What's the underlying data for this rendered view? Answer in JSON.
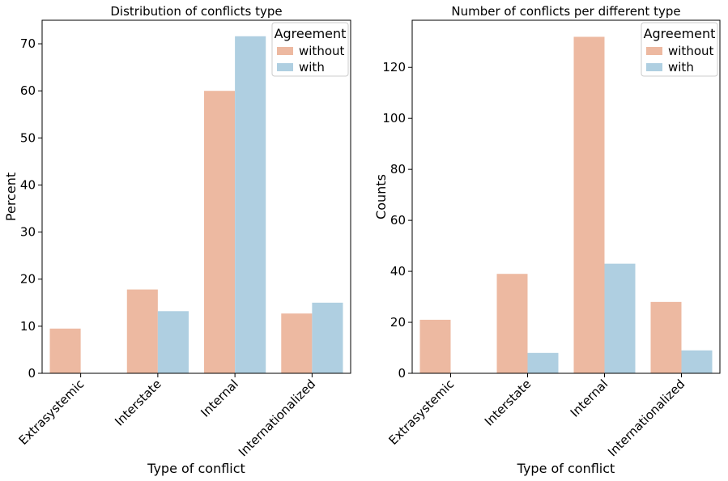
{
  "chart_data": [
    {
      "type": "bar",
      "title": "Distribution of conflicts type",
      "xlabel": "Type of conflict",
      "ylabel": "Percent",
      "categories": [
        "Extrasystemic",
        "Interstate",
        "Internal",
        "Internationalized"
      ],
      "ylim": [
        0,
        75
      ],
      "yticks": [
        0,
        10,
        20,
        30,
        40,
        50,
        60,
        70
      ],
      "legend": {
        "title": "Agreement",
        "placement": "top-right"
      },
      "grid": false,
      "series": [
        {
          "name": "without",
          "color": "#edb9a1",
          "values": [
            9.5,
            17.8,
            60.0,
            12.7
          ]
        },
        {
          "name": "with",
          "color": "#afcfe1",
          "values": [
            0,
            13.2,
            71.6,
            15.0
          ]
        }
      ]
    },
    {
      "type": "bar",
      "title": "Number of conflicts per different type",
      "xlabel": "Type of conflict",
      "ylabel": "Counts",
      "categories": [
        "Extrasystemic",
        "Interstate",
        "Internal",
        "Internationalized"
      ],
      "ylim": [
        0,
        138.5
      ],
      "yticks": [
        0,
        20,
        40,
        60,
        80,
        100,
        120
      ],
      "legend": {
        "title": "Agreement",
        "placement": "top-right"
      },
      "grid": false,
      "series": [
        {
          "name": "without",
          "color": "#edb9a1",
          "values": [
            21,
            39,
            132,
            28
          ]
        },
        {
          "name": "with",
          "color": "#afcfe1",
          "values": [
            0,
            8,
            43,
            9
          ]
        }
      ]
    }
  ]
}
